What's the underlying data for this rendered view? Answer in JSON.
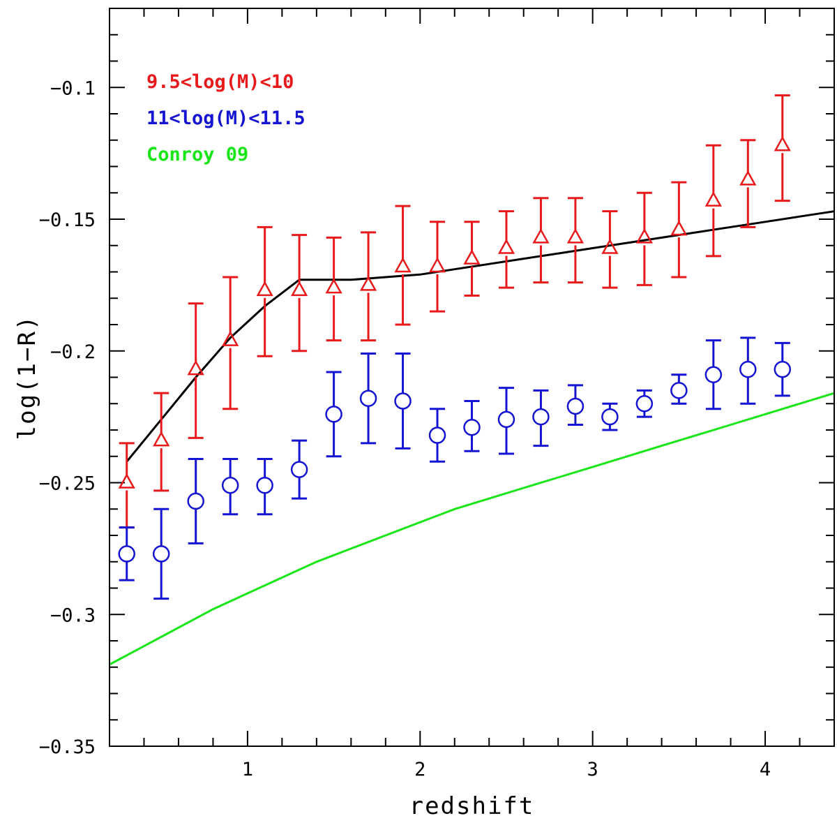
{
  "chart_data": {
    "type": "scatter",
    "xlabel": "redshift",
    "ylabel": "log(1−R)",
    "xlim": [
      0.2,
      4.4
    ],
    "ylim": [
      -0.35,
      -0.07
    ],
    "x_ticks": [
      {
        "value": 1,
        "label": "1"
      },
      {
        "value": 2,
        "label": "2"
      },
      {
        "value": 3,
        "label": "3"
      },
      {
        "value": 4,
        "label": "4"
      }
    ],
    "y_ticks": [
      {
        "value": -0.1,
        "label": "−0.1"
      },
      {
        "value": -0.15,
        "label": "−0.15"
      },
      {
        "value": -0.2,
        "label": "−0.2"
      },
      {
        "value": -0.25,
        "label": "−0.25"
      },
      {
        "value": -0.3,
        "label": "−0.3"
      },
      {
        "value": -0.35,
        "label": "−0.35"
      }
    ],
    "legend_position": "top-left",
    "series": [
      {
        "name": "9.5<log(M)<10",
        "kind": "points",
        "marker": "triangle",
        "color": "#e8191b",
        "x": [
          0.3,
          0.5,
          0.7,
          0.9,
          1.1,
          1.3,
          1.5,
          1.7,
          1.9,
          2.1,
          2.3,
          2.5,
          2.7,
          2.9,
          3.1,
          3.3,
          3.5,
          3.7,
          3.9,
          4.1
        ],
        "y": [
          -0.25,
          -0.234,
          -0.207,
          -0.196,
          -0.177,
          -0.177,
          -0.176,
          -0.175,
          -0.168,
          -0.168,
          -0.165,
          -0.161,
          -0.157,
          -0.157,
          -0.161,
          -0.157,
          -0.154,
          -0.143,
          -0.135,
          -0.122
        ],
        "err_low": [
          -0.267,
          -0.253,
          -0.233,
          -0.222,
          -0.202,
          -0.2,
          -0.196,
          -0.196,
          -0.19,
          -0.185,
          -0.179,
          -0.176,
          -0.174,
          -0.174,
          -0.176,
          -0.175,
          -0.172,
          -0.164,
          -0.153,
          -0.143
        ],
        "err_high": [
          -0.235,
          -0.216,
          -0.182,
          -0.172,
          -0.153,
          -0.156,
          -0.157,
          -0.155,
          -0.145,
          -0.151,
          -0.151,
          -0.147,
          -0.142,
          -0.142,
          -0.147,
          -0.14,
          -0.136,
          -0.122,
          -0.12,
          -0.103
        ]
      },
      {
        "name": "11<log(M)<11.5",
        "kind": "points",
        "marker": "circle",
        "color": "#1414d2",
        "x": [
          0.3,
          0.5,
          0.7,
          0.9,
          1.1,
          1.3,
          1.5,
          1.7,
          1.9,
          2.1,
          2.3,
          2.5,
          2.7,
          2.9,
          3.1,
          3.3,
          3.5,
          3.7,
          3.9,
          4.1
        ],
        "y": [
          -0.277,
          -0.277,
          -0.257,
          -0.251,
          -0.251,
          -0.245,
          -0.224,
          -0.218,
          -0.219,
          -0.232,
          -0.229,
          -0.226,
          -0.225,
          -0.221,
          -0.225,
          -0.22,
          -0.215,
          -0.209,
          -0.207,
          -0.207
        ],
        "err_low": [
          -0.287,
          -0.294,
          -0.273,
          -0.262,
          -0.262,
          -0.256,
          -0.24,
          -0.235,
          -0.237,
          -0.242,
          -0.238,
          -0.239,
          -0.236,
          -0.228,
          -0.23,
          -0.225,
          -0.22,
          -0.222,
          -0.22,
          -0.217
        ],
        "err_high": [
          -0.267,
          -0.26,
          -0.241,
          -0.241,
          -0.241,
          -0.234,
          -0.208,
          -0.201,
          -0.201,
          -0.222,
          -0.219,
          -0.214,
          -0.215,
          -0.213,
          -0.22,
          -0.215,
          -0.209,
          -0.196,
          -0.195,
          -0.197
        ]
      },
      {
        "name": "Conroy 09",
        "kind": "line",
        "color": "#19e619",
        "x": [
          0.2,
          0.4,
          0.6,
          0.8,
          1.0,
          1.2,
          1.4,
          1.6,
          1.8,
          2.0,
          2.2,
          2.4,
          2.6,
          2.8,
          3.0,
          3.2,
          3.4,
          3.6,
          3.8,
          4.0,
          4.2,
          4.4
        ],
        "y": [
          -0.319,
          -0.312,
          -0.305,
          -0.298,
          -0.292,
          -0.286,
          -0.28,
          -0.275,
          -0.27,
          -0.265,
          -0.26,
          -0.256,
          -0.252,
          -0.248,
          -0.244,
          -0.24,
          -0.236,
          -0.232,
          -0.228,
          -0.224,
          -0.22,
          -0.216
        ]
      },
      {
        "name": "",
        "kind": "line",
        "color": "#000000",
        "x": [
          0.3,
          0.5,
          0.7,
          0.9,
          1.1,
          1.3,
          1.4,
          1.6,
          1.8,
          2.0,
          2.2,
          2.4,
          2.6,
          2.8,
          3.0,
          3.2,
          3.4,
          3.6,
          3.8,
          4.0,
          4.2,
          4.4
        ],
        "y": [
          -0.242,
          -0.226,
          -0.21,
          -0.195,
          -0.183,
          -0.173,
          -0.173,
          -0.173,
          -0.172,
          -0.171,
          -0.169,
          -0.167,
          -0.165,
          -0.163,
          -0.161,
          -0.159,
          -0.157,
          -0.155,
          -0.153,
          -0.151,
          -0.149,
          -0.147
        ]
      }
    ]
  }
}
